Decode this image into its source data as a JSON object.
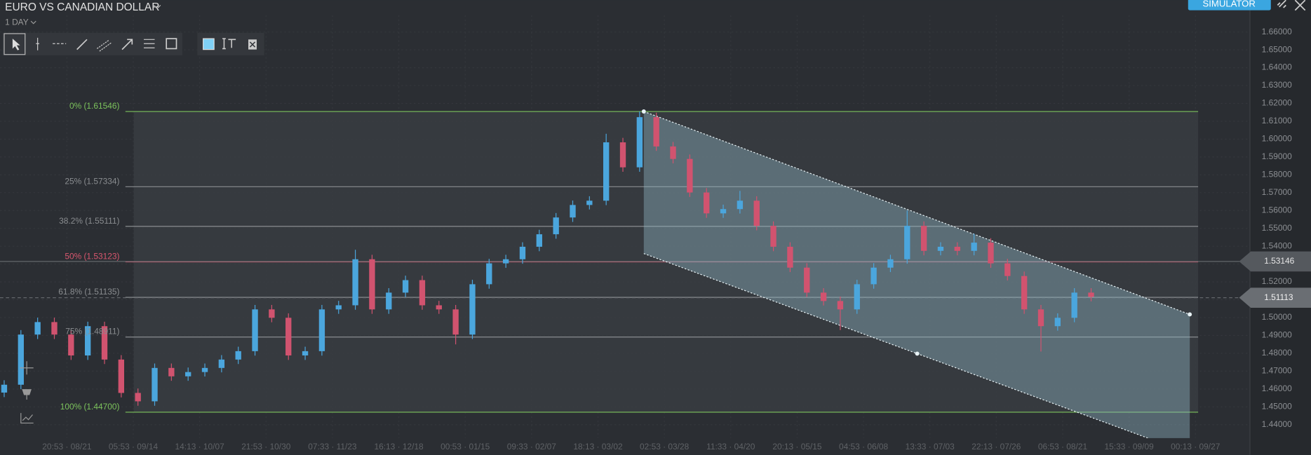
{
  "header": {
    "title": "EURO VS CANADIAN DOLLAR",
    "timeframe": "1 DAY",
    "mode_button": "SIMULATOR"
  },
  "chart_data": {
    "type": "candlestick",
    "up_color": "#4ba6dd",
    "down_color": "#d1536f",
    "open": [
      1.458,
      1.4624,
      1.4905,
      1.4975,
      1.4905,
      1.4788,
      1.4952,
      1.4765,
      1.4578,
      1.4531,
      1.4718,
      1.4671,
      1.4695,
      1.4718,
      1.4765,
      1.4812,
      1.5046,
      1.4999,
      1.4788,
      1.4812,
      1.5046,
      1.5069,
      1.5327,
      1.5046,
      1.514,
      1.521,
      1.5069,
      1.5046,
      1.4905,
      1.5187,
      1.5304,
      1.5327,
      1.5397,
      1.5467,
      1.5561,
      1.5631,
      1.5655,
      1.5982,
      1.5842,
      1.6123,
      1.5959,
      1.5889,
      1.5701,
      1.5584,
      1.5608,
      1.5655,
      1.5514,
      1.5397,
      1.528,
      1.514,
      1.5093,
      1.5046,
      1.5187,
      1.528,
      1.5327,
      1.5514,
      1.5374,
      1.5397,
      1.5374,
      1.542,
      1.5304,
      1.5233,
      1.5046,
      1.4952,
      1.4999,
      1.514
    ],
    "high": [
      1.4649,
      1.493,
      1.5,
      1.5,
      1.493,
      1.4977,
      1.4977,
      1.479,
      1.4603,
      1.4743,
      1.4743,
      1.472,
      1.4743,
      1.479,
      1.4837,
      1.5071,
      1.5071,
      1.5024,
      1.4837,
      1.5071,
      1.5094,
      1.538,
      1.5352,
      1.5165,
      1.5235,
      1.5235,
      1.5094,
      1.5071,
      1.5212,
      1.5329,
      1.5352,
      1.5422,
      1.5492,
      1.5586,
      1.5656,
      1.568,
      1.603,
      1.6007,
      1.6155,
      1.6148,
      1.5984,
      1.5914,
      1.5726,
      1.5633,
      1.571,
      1.568,
      1.5539,
      1.5422,
      1.5305,
      1.5165,
      1.5118,
      1.5212,
      1.5305,
      1.5352,
      1.56,
      1.5539,
      1.5422,
      1.5422,
      1.547,
      1.5445,
      1.5329,
      1.5258,
      1.5071,
      1.5024,
      1.5165,
      1.5165
    ],
    "low": [
      1.4555,
      1.4599,
      1.488,
      1.488,
      1.4763,
      1.4763,
      1.474,
      1.4553,
      1.4506,
      1.4506,
      1.4646,
      1.4646,
      1.467,
      1.4693,
      1.474,
      1.4787,
      1.4974,
      1.4763,
      1.4763,
      1.4787,
      1.5021,
      1.5044,
      1.5021,
      1.5021,
      1.5115,
      1.5044,
      1.5021,
      1.485,
      1.488,
      1.5162,
      1.5279,
      1.5302,
      1.5372,
      1.5442,
      1.5536,
      1.5606,
      1.563,
      1.5817,
      1.5817,
      1.5934,
      1.5864,
      1.5676,
      1.5559,
      1.5559,
      1.5583,
      1.5489,
      1.5372,
      1.5255,
      1.5115,
      1.5068,
      1.493,
      1.5021,
      1.5162,
      1.5255,
      1.5302,
      1.5349,
      1.5349,
      1.5349,
      1.5349,
      1.5279,
      1.5208,
      1.5021,
      1.481,
      1.4927,
      1.4974,
      1.5091
    ],
    "close": [
      1.4624,
      1.4905,
      1.4975,
      1.4905,
      1.4788,
      1.4952,
      1.4765,
      1.4578,
      1.4531,
      1.4718,
      1.4671,
      1.4695,
      1.4718,
      1.4765,
      1.4812,
      1.5046,
      1.4999,
      1.4788,
      1.4812,
      1.5046,
      1.5069,
      1.5327,
      1.5046,
      1.514,
      1.521,
      1.5069,
      1.5046,
      1.4905,
      1.5187,
      1.5304,
      1.5327,
      1.5397,
      1.5467,
      1.5561,
      1.5631,
      1.5655,
      1.5982,
      1.5842,
      1.6123,
      1.5959,
      1.5889,
      1.5701,
      1.5584,
      1.5608,
      1.5655,
      1.5514,
      1.5397,
      1.528,
      1.514,
      1.5093,
      1.5046,
      1.5187,
      1.528,
      1.5327,
      1.5514,
      1.5374,
      1.5397,
      1.5374,
      1.542,
      1.5304,
      1.5233,
      1.5046,
      1.4952,
      1.4999,
      1.514,
      1.5116
    ],
    "xlim": [
      -0.25,
      74.5
    ],
    "xticks": [
      {
        "value": 3.75,
        "label": "20:53 · 08/21"
      },
      {
        "value": 7.72,
        "label": "05:53 · 09/14"
      },
      {
        "value": 11.69,
        "label": "14:13 · 10/07"
      },
      {
        "value": 15.66,
        "label": "21:53 · 10/30"
      },
      {
        "value": 19.63,
        "label": "07:33 · 11/23"
      },
      {
        "value": 23.6,
        "label": "16:13 · 12/18"
      },
      {
        "value": 27.57,
        "label": "00:53 · 01/15"
      },
      {
        "value": 31.54,
        "label": "09:33 · 02/07"
      },
      {
        "value": 35.51,
        "label": "18:13 · 03/02"
      },
      {
        "value": 39.48,
        "label": "02:53 · 03/28"
      },
      {
        "value": 43.45,
        "label": "11:33 · 04/20"
      },
      {
        "value": 47.42,
        "label": "20:13 · 05/15"
      },
      {
        "value": 51.39,
        "label": "04:53 · 06/08"
      },
      {
        "value": 55.36,
        "label": "13:33 · 07/03"
      },
      {
        "value": 59.33,
        "label": "22:13 · 07/26"
      },
      {
        "value": 63.3,
        "label": "06:53 · 08/21"
      },
      {
        "value": 67.27,
        "label": "15:33 · 09/09"
      },
      {
        "value": 71.24,
        "label": "00:13 · 09/27"
      }
    ],
    "ylim": [
      1.4325,
      1.6694
    ],
    "yticks": [
      {
        "value": 1.44,
        "label": "1.44000"
      },
      {
        "value": 1.45,
        "label": "1.45000"
      },
      {
        "value": 1.46,
        "label": "1.46000"
      },
      {
        "value": 1.47,
        "label": "1.47000"
      },
      {
        "value": 1.48,
        "label": "1.48000"
      },
      {
        "value": 1.49,
        "label": "1.49000"
      },
      {
        "value": 1.5,
        "label": "1.50000"
      },
      {
        "value": 1.51,
        "label": "1.51000"
      },
      {
        "value": 1.52,
        "label": "1.52000"
      },
      {
        "value": 1.53,
        "label": "1.53000"
      },
      {
        "value": 1.54,
        "label": "1.54000"
      },
      {
        "value": 1.55,
        "label": "1.55000"
      },
      {
        "value": 1.56,
        "label": "1.56000"
      },
      {
        "value": 1.57,
        "label": "1.57000"
      },
      {
        "value": 1.58,
        "label": "1.58000"
      },
      {
        "value": 1.59,
        "label": "1.59000"
      },
      {
        "value": 1.6,
        "label": "1.60000"
      },
      {
        "value": 1.61,
        "label": "1.61000"
      },
      {
        "value": 1.62,
        "label": "1.62000"
      },
      {
        "value": 1.63,
        "label": "1.63000"
      },
      {
        "value": 1.64,
        "label": "1.64000"
      },
      {
        "value": 1.65,
        "label": "1.65000"
      },
      {
        "value": 1.66,
        "label": "1.66000"
      }
    ],
    "grid": true,
    "fib_levels": [
      {
        "label": "0% (1.61546)",
        "value": 1.61546,
        "color": "#7cc35c"
      },
      {
        "label": "25% (1.57334)",
        "value": 1.57334,
        "color": "#8a8d90"
      },
      {
        "label": "38.2% (1.55111)",
        "value": 1.55111,
        "color": "#8a8d90"
      },
      {
        "label": "50% (1.53123)",
        "value": 1.53123,
        "color": "#d8566e"
      },
      {
        "label": "61.8% (1.51135)",
        "value": 1.51135,
        "color": "#8a8d90"
      },
      {
        "label": "75% (1.48911)",
        "value": 1.48911,
        "color": "#8a8d90"
      },
      {
        "label": "100% (1.44700)",
        "value": 1.447,
        "color": "#7cc35c"
      }
    ],
    "channel": {
      "upper": [
        [
          38.25,
          1.6155
        ],
        [
          70.9,
          1.5018
        ]
      ],
      "lower": [
        [
          38.25,
          1.5359
        ],
        [
          70.9,
          1.4239
        ]
      ],
      "handle": [
        54.6,
        1.4798
      ]
    },
    "marker_price": 1.53146,
    "last_price": 1.51113
  }
}
